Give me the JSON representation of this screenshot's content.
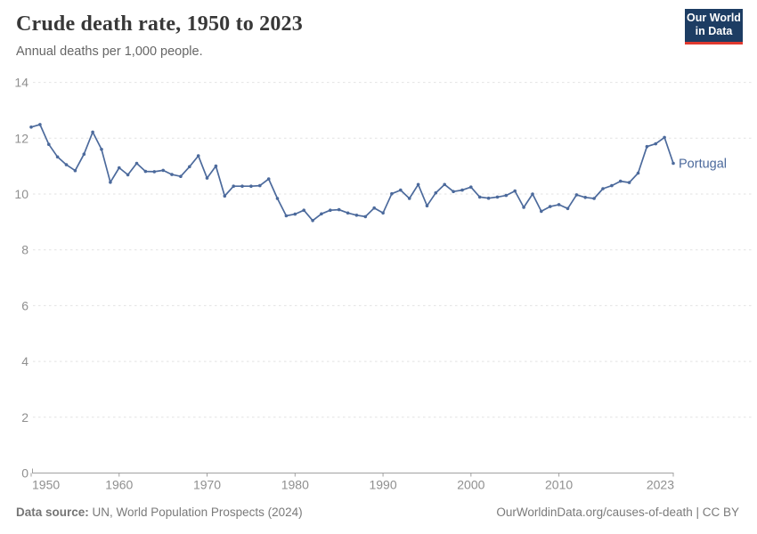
{
  "header": {
    "title": "Crude death rate, 1950 to 2023",
    "subtitle": "Annual deaths per 1,000 people.",
    "logo": {
      "line1": "Our World",
      "line2": "in Data",
      "bg_color": "#1d3d63",
      "accent_color": "#e0392f"
    }
  },
  "chart_data": {
    "type": "line",
    "title": "Crude death rate, 1950 to 2023",
    "xlabel": "",
    "ylabel": "Annual deaths per 1,000 people",
    "ylim": [
      0,
      14
    ],
    "yticks": [
      0,
      2,
      4,
      6,
      8,
      10,
      12,
      14
    ],
    "xticks": [
      1950,
      1960,
      1970,
      1980,
      1990,
      2000,
      2010,
      2023
    ],
    "grid": "horizontal-dashed",
    "legend_position": "right-of-line-end",
    "series": [
      {
        "name": "Portugal",
        "color": "#4C6A9C",
        "x": [
          1950,
          1951,
          1952,
          1953,
          1954,
          1955,
          1956,
          1957,
          1958,
          1959,
          1960,
          1961,
          1962,
          1963,
          1964,
          1965,
          1966,
          1967,
          1968,
          1969,
          1970,
          1971,
          1972,
          1973,
          1974,
          1975,
          1976,
          1977,
          1978,
          1979,
          1980,
          1981,
          1982,
          1983,
          1984,
          1985,
          1986,
          1987,
          1988,
          1989,
          1990,
          1991,
          1992,
          1993,
          1994,
          1995,
          1996,
          1997,
          1998,
          1999,
          2000,
          2001,
          2002,
          2003,
          2004,
          2005,
          2006,
          2007,
          2008,
          2009,
          2010,
          2011,
          2012,
          2013,
          2014,
          2015,
          2016,
          2017,
          2018,
          2019,
          2020,
          2021,
          2022,
          2023
        ],
        "values": [
          12.4,
          12.49,
          11.78,
          11.33,
          11.05,
          10.84,
          11.43,
          12.22,
          11.6,
          10.42,
          10.94,
          10.69,
          11.1,
          10.81,
          10.8,
          10.85,
          10.7,
          10.63,
          10.98,
          11.37,
          10.57,
          11.0,
          9.93,
          10.28,
          10.28,
          10.28,
          10.3,
          10.54,
          9.84,
          9.22,
          9.28,
          9.42,
          9.05,
          9.29,
          9.42,
          9.44,
          9.32,
          9.24,
          9.19,
          9.5,
          9.32,
          10.01,
          10.14,
          9.84,
          10.34,
          9.58,
          10.04,
          10.34,
          10.09,
          10.14,
          10.25,
          9.89,
          9.85,
          9.89,
          9.95,
          10.11,
          9.52,
          10.0,
          9.38,
          9.55,
          9.62,
          9.48,
          9.97,
          9.88,
          9.84,
          10.19,
          10.3,
          10.46,
          10.41,
          10.75,
          11.7,
          11.8,
          12.03,
          11.1
        ]
      }
    ],
    "style": {
      "gridline_color": "#e2e2e2",
      "axis_color": "#a0a0a0",
      "tick_label_color": "#8f8f8f",
      "tick_font_size": 14
    }
  },
  "footer": {
    "source_label": "Data source:",
    "source_text": " UN, World Population Prospects (2024)",
    "credit": "OurWorldinData.org/causes-of-death | CC BY"
  }
}
